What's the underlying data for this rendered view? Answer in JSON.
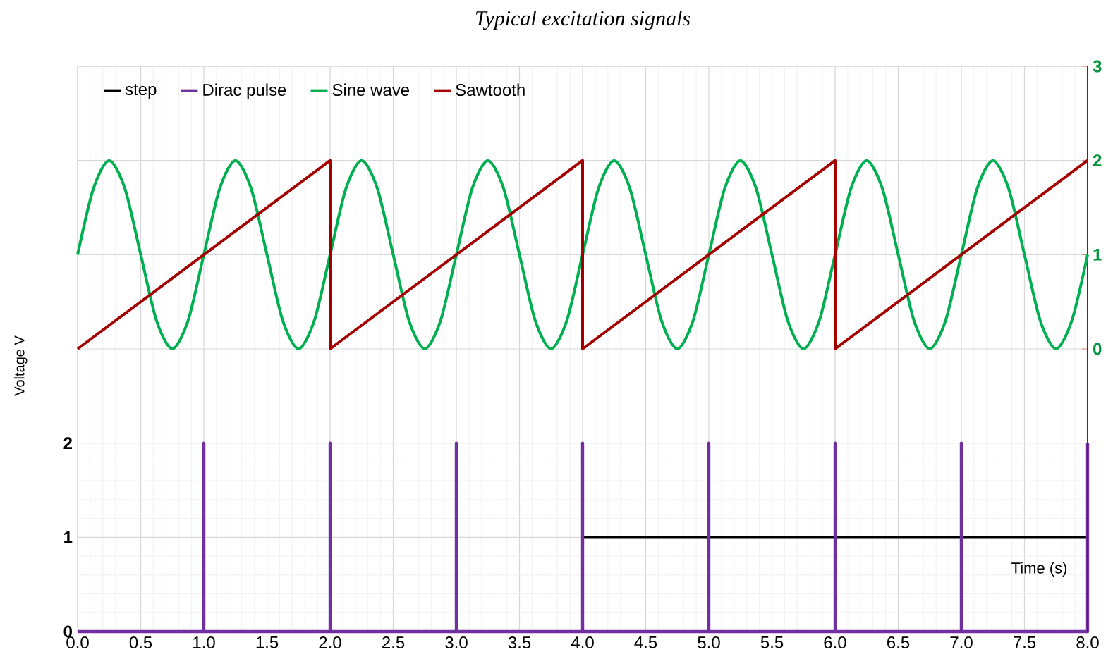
{
  "chart_data": {
    "type": "line",
    "title": "Typical excitation signals",
    "xlabel": "Time (s)",
    "ylabel": "Voltage V",
    "xlim": [
      0,
      8
    ],
    "ylim": [
      0,
      6
    ],
    "y2lim": [
      -3,
      3
    ],
    "xticks": [
      {
        "value": 0,
        "label": "0.0"
      },
      {
        "value": 0.5,
        "label": "0.5"
      },
      {
        "value": 1,
        "label": "1.0"
      },
      {
        "value": 1.5,
        "label": "1.5"
      },
      {
        "value": 2,
        "label": "2.0"
      },
      {
        "value": 2.5,
        "label": "2.5"
      },
      {
        "value": 3,
        "label": "3.0"
      },
      {
        "value": 3.5,
        "label": "3.5"
      },
      {
        "value": 4,
        "label": "4.0"
      },
      {
        "value": 4.5,
        "label": "4.5"
      },
      {
        "value": 5,
        "label": "5.0"
      },
      {
        "value": 5.5,
        "label": "5.5"
      },
      {
        "value": 6,
        "label": "6.0"
      },
      {
        "value": 6.5,
        "label": "6.5"
      },
      {
        "value": 7,
        "label": "7.0"
      },
      {
        "value": 7.5,
        "label": "7.5"
      },
      {
        "value": 8,
        "label": "8.0"
      }
    ],
    "yticks": [
      0,
      1,
      2
    ],
    "y2ticks": [
      0,
      1,
      2,
      3
    ],
    "grid": true,
    "legend": "top left",
    "marker": "none",
    "series": [
      {
        "name": "step",
        "color": "#000000",
        "x": [
          4,
          8
        ],
        "values": [
          1,
          1
        ]
      },
      {
        "name": "Dirac pulse",
        "color": "#7030a0",
        "x": [
          0,
          1,
          1,
          1,
          2,
          2,
          2,
          3,
          3,
          3,
          4,
          4,
          4,
          5,
          5,
          5,
          6,
          6,
          6,
          7,
          7,
          7,
          8,
          8
        ],
        "values": [
          0,
          0,
          2,
          0,
          0,
          2,
          0,
          0,
          2,
          0,
          0,
          2,
          0,
          0,
          2,
          0,
          0,
          2,
          0,
          0,
          2,
          0,
          0,
          2
        ]
      },
      {
        "name": "Sine wave",
        "color": "#00b050",
        "axis": "y2",
        "x": [
          0,
          0.125,
          0.25,
          0.375,
          0.5,
          0.625,
          0.75,
          0.875,
          1,
          1.125,
          1.25,
          1.375,
          1.5,
          1.625,
          1.75,
          1.875,
          2,
          2.125,
          2.25,
          2.375,
          2.5,
          2.625,
          2.75,
          2.875,
          3,
          3.125,
          3.25,
          3.375,
          3.5,
          3.625,
          3.75,
          3.875,
          4,
          4.125,
          4.25,
          4.375,
          4.5,
          4.625,
          4.75,
          4.875,
          5,
          5.125,
          5.25,
          5.375,
          5.5,
          5.625,
          5.75,
          5.875,
          6,
          6.125,
          6.25,
          6.375,
          6.5,
          6.625,
          6.75,
          6.875,
          7,
          7.125,
          7.25,
          7.375,
          7.5,
          7.625,
          7.75,
          7.875,
          8
        ],
        "values": [
          1,
          1.7,
          2,
          1.7,
          1,
          0.3,
          0,
          0.3,
          1,
          1.7,
          2,
          1.7,
          1,
          0.3,
          0,
          0.3,
          1,
          1.7,
          2,
          1.7,
          1,
          0.3,
          0,
          0.3,
          1,
          1.7,
          2,
          1.7,
          1,
          0.3,
          0,
          0.3,
          1,
          1.7,
          2,
          1.7,
          1,
          0.3,
          0,
          0.3,
          1,
          1.7,
          2,
          1.7,
          1,
          0.3,
          0,
          0.3,
          1,
          1.7,
          2,
          1.7,
          1,
          0.3,
          0,
          0.3,
          1,
          1.7,
          2,
          1.7,
          1,
          0.3,
          0,
          0.3,
          1
        ]
      },
      {
        "name": "Sawtooth",
        "color": "#a50000",
        "axis": "y2",
        "x": [
          0,
          2,
          2,
          4,
          4,
          6,
          6,
          8
        ],
        "values": [
          0,
          2,
          0,
          2,
          0,
          2,
          0,
          2
        ]
      }
    ]
  }
}
